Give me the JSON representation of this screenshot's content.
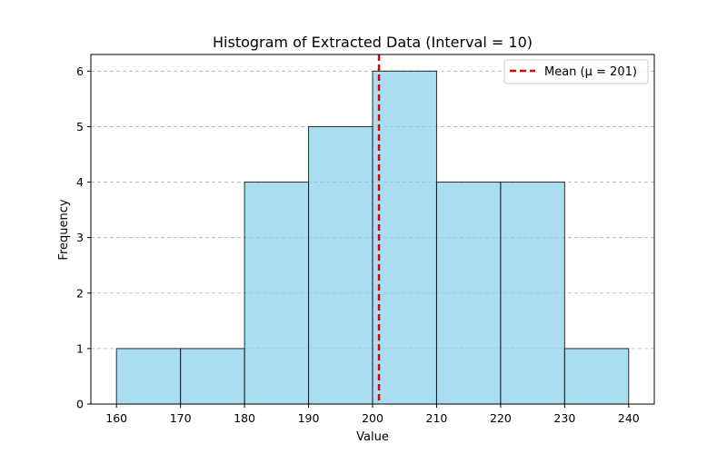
{
  "chart_data": {
    "type": "bar",
    "title": "Histogram of Extracted Data (Interval = 10)",
    "xlabel": "Value",
    "ylabel": "Frequency",
    "bins": [
      {
        "start": 160,
        "end": 170,
        "count": 1
      },
      {
        "start": 170,
        "end": 180,
        "count": 1
      },
      {
        "start": 180,
        "end": 190,
        "count": 4
      },
      {
        "start": 190,
        "end": 200,
        "count": 5
      },
      {
        "start": 200,
        "end": 210,
        "count": 6
      },
      {
        "start": 210,
        "end": 220,
        "count": 4
      },
      {
        "start": 220,
        "end": 230,
        "count": 4
      },
      {
        "start": 230,
        "end": 240,
        "count": 1
      }
    ],
    "xlim": [
      156,
      244
    ],
    "ylim": [
      0,
      6.3
    ],
    "xticks": [
      160,
      170,
      180,
      190,
      200,
      210,
      220,
      230,
      240
    ],
    "yticks": [
      0,
      1,
      2,
      3,
      4,
      5,
      6
    ],
    "mean": 201,
    "legend": {
      "label": "Mean (μ = 201)",
      "placement": "top-right"
    },
    "grid": "y-dashed",
    "colors": {
      "bar_fill": "#87CEEB",
      "bar_edge": "#000000",
      "mean_line": "#dd0000",
      "grid": "#b0b0b0"
    }
  }
}
